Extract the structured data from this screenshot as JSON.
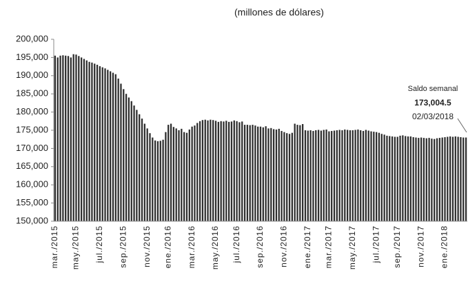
{
  "chart_data": {
    "type": "bar",
    "subtitle": "(millones de dólares)",
    "color": "#2e2e2e",
    "categories": [
      "mar./2015",
      null,
      null,
      null,
      null,
      null,
      null,
      null,
      "may./2015",
      null,
      null,
      null,
      null,
      null,
      null,
      null,
      null,
      "jul./2015",
      null,
      null,
      null,
      null,
      null,
      null,
      null,
      null,
      "sep./2015",
      null,
      null,
      null,
      null,
      null,
      null,
      null,
      null,
      "nov./2015",
      null,
      null,
      null,
      null,
      null,
      null,
      null,
      "ene./2016",
      null,
      null,
      null,
      null,
      null,
      null,
      null,
      null,
      "mar./2016",
      null,
      null,
      null,
      null,
      null,
      null,
      null,
      null,
      "may./2016",
      null,
      null,
      null,
      null,
      null,
      null,
      null,
      "jul./2016",
      null,
      null,
      null,
      null,
      null,
      null,
      null,
      null,
      "sep./2016",
      null,
      null,
      null,
      null,
      null,
      null,
      null,
      null,
      "nov./2016",
      null,
      null,
      null,
      null,
      null,
      null,
      null,
      null,
      "ene./2017",
      null,
      null,
      null,
      null,
      null,
      null,
      null,
      "mar./2017",
      null,
      null,
      null,
      null,
      null,
      null,
      null,
      null,
      "may./2017",
      null,
      null,
      null,
      null,
      null,
      null,
      null,
      null,
      "jul./2017",
      null,
      null,
      null,
      null,
      null,
      null,
      null,
      "sep./2017",
      null,
      null,
      null,
      null,
      null,
      null,
      null,
      null,
      "nov./2017",
      null,
      null,
      null,
      null,
      null,
      null,
      null,
      null,
      "ene./2018",
      null,
      null,
      null,
      null,
      null,
      null,
      null,
      null
    ],
    "values": [
      195500,
      195000,
      195500,
      195600,
      195500,
      195400,
      195000,
      195900,
      195800,
      195400,
      195000,
      194600,
      194200,
      193800,
      193600,
      193300,
      193000,
      192600,
      192300,
      192000,
      191600,
      191200,
      190800,
      190400,
      189200,
      187800,
      186300,
      185000,
      184000,
      183000,
      181800,
      180600,
      179400,
      178200,
      176800,
      175500,
      174200,
      173000,
      172200,
      172000,
      172100,
      172400,
      174500,
      176500,
      176800,
      175900,
      175500,
      175000,
      175400,
      174500,
      174300,
      175200,
      176000,
      176300,
      177000,
      177500,
      177800,
      177900,
      177700,
      177900,
      177800,
      177600,
      177300,
      177500,
      177400,
      177600,
      177300,
      177400,
      177700,
      177500,
      177200,
      177400,
      176500,
      176500,
      176400,
      176500,
      176300,
      176000,
      176000,
      175800,
      176100,
      175500,
      175600,
      175300,
      175200,
      175400,
      174800,
      174500,
      174200,
      174000,
      174300,
      176800,
      176500,
      176400,
      176700,
      175000,
      174900,
      175000,
      174800,
      175000,
      175100,
      174900,
      175100,
      175200,
      174700,
      174800,
      174900,
      175000,
      175100,
      175000,
      175200,
      175100,
      175000,
      175000,
      175100,
      175200,
      175000,
      174800,
      175100,
      174900,
      174700,
      174600,
      174500,
      174300,
      174000,
      173800,
      173500,
      173400,
      173300,
      173200,
      173200,
      173500,
      173600,
      173400,
      173300,
      173300,
      173100,
      173000,
      172900,
      173000,
      172900,
      172800,
      172900,
      172700,
      172600,
      172800,
      172900,
      173000,
      173100,
      173200,
      173300,
      173200,
      173300,
      173200,
      173100,
      173000,
      173004.5
    ],
    "ylim": [
      150000,
      200000
    ],
    "yticks": [
      {
        "value": 150000,
        "label": "150,000"
      },
      {
        "value": 155000,
        "label": "155,000"
      },
      {
        "value": 160000,
        "label": "160,000"
      },
      {
        "value": 165000,
        "label": "165,000"
      },
      {
        "value": 170000,
        "label": "170,000"
      },
      {
        "value": 175000,
        "label": "175,000"
      },
      {
        "value": 180000,
        "label": "180,000"
      },
      {
        "value": 185000,
        "label": "185,000"
      },
      {
        "value": 190000,
        "label": "190,000"
      },
      {
        "value": 195000,
        "label": "195,000"
      },
      {
        "value": 200000,
        "label": "200,000"
      }
    ],
    "grid": false,
    "annotation": {
      "title": "Saldo semanal",
      "value_label": "173,004.5",
      "date": "02/03/2018"
    }
  }
}
